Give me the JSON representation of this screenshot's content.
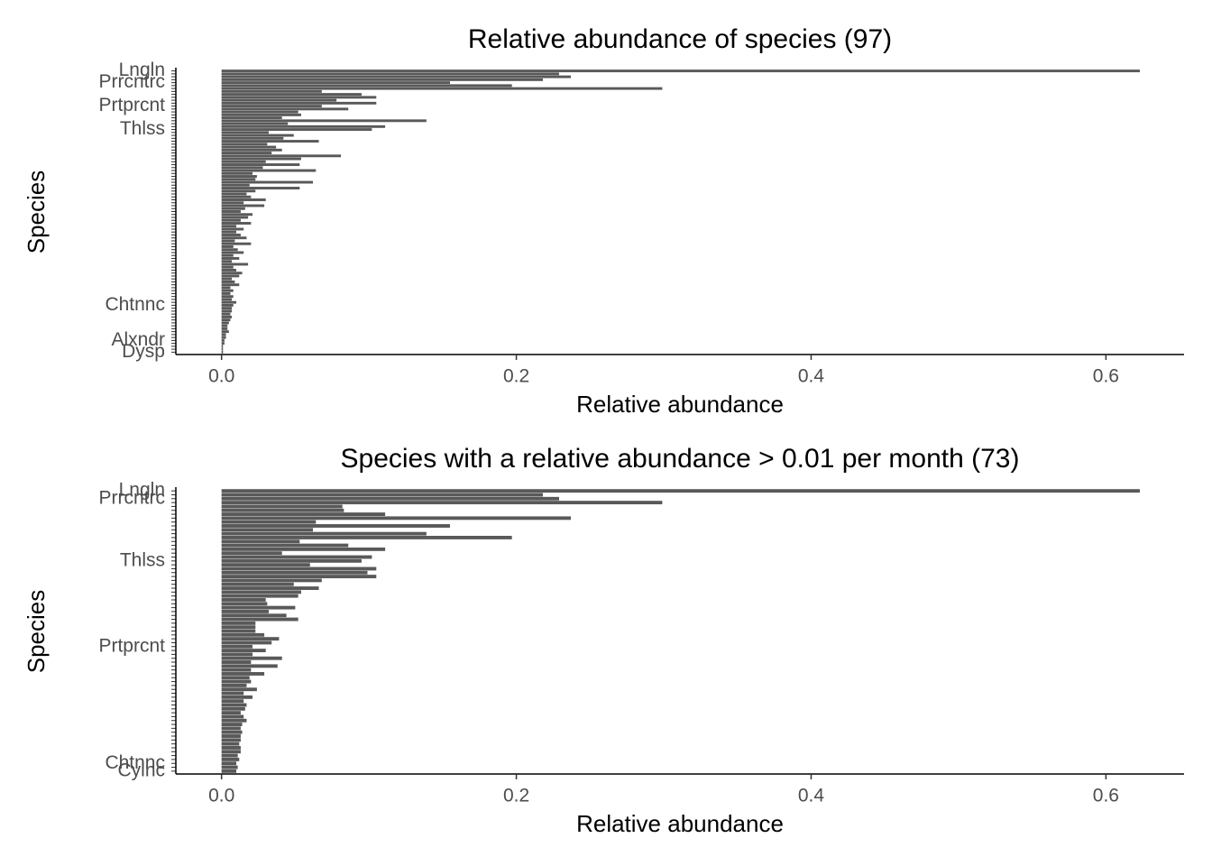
{
  "chart_data": [
    {
      "type": "bar",
      "orientation": "horizontal",
      "title": "Relative abundance of species (97)",
      "xlabel": "Relative abundance",
      "ylabel": "Species",
      "color": "#595959",
      "xlim": [
        -0.031,
        0.653
      ],
      "xticks": [
        {
          "value": 0,
          "label": "0.0"
        },
        0.2,
        0.4,
        0.6
      ],
      "categories": [
        "Lngln",
        null,
        null,
        null,
        "Prrcntrc",
        null,
        null,
        null,
        null,
        null,
        null,
        null,
        "Prtprcnt",
        null,
        null,
        null,
        null,
        null,
        null,
        null,
        "Thlss",
        null,
        null,
        null,
        null,
        null,
        null,
        null,
        null,
        null,
        null,
        null,
        null,
        null,
        null,
        null,
        null,
        null,
        null,
        null,
        null,
        null,
        null,
        null,
        null,
        null,
        null,
        null,
        null,
        null,
        null,
        null,
        null,
        null,
        null,
        null,
        null,
        null,
        null,
        null,
        null,
        null,
        null,
        null,
        null,
        null,
        null,
        null,
        null,
        null,
        null,
        null,
        null,
        null,
        null,
        null,
        null,
        null,
        null,
        null,
        "Chtnnc",
        null,
        null,
        null,
        null,
        null,
        null,
        null,
        null,
        null,
        null,
        null,
        "Alxndr",
        null,
        null,
        null,
        "Dysp"
      ],
      "values": [
        0.623,
        0.229,
        0.237,
        0.218,
        0.155,
        0.197,
        0.299,
        0.068,
        0.095,
        0.105,
        0.078,
        0.105,
        0.068,
        0.086,
        0.052,
        0.054,
        0.041,
        0.139,
        0.045,
        0.111,
        0.102,
        0.032,
        0.049,
        0.042,
        0.066,
        0.031,
        0.037,
        0.041,
        0.034,
        0.081,
        0.054,
        0.03,
        0.053,
        0.028,
        0.064,
        0.021,
        0.024,
        0.023,
        0.062,
        0.019,
        0.053,
        0.023,
        0.017,
        0.02,
        0.03,
        0.015,
        0.029,
        0.016,
        0.013,
        0.021,
        0.018,
        0.013,
        0.02,
        0.01,
        0.015,
        0.01,
        0.013,
        0.017,
        0.009,
        0.02,
        0.008,
        0.011,
        0.015,
        0.008,
        0.012,
        0.007,
        0.018,
        0.008,
        0.01,
        0.014,
        0.012,
        0.007,
        0.009,
        0.012,
        0.006,
        0.008,
        0.006,
        0.008,
        0.007,
        0.01,
        0.008,
        0.007,
        0.007,
        0.006,
        0.007,
        0.006,
        0.005,
        0.004,
        0.004,
        0.005,
        0.003,
        0.003,
        0.002,
        0.002,
        0.001,
        0.001,
        0.001
      ]
    },
    {
      "type": "bar",
      "orientation": "horizontal",
      "title": "Species with a relative abundance > 0.01 per month (73)",
      "xlabel": "Relative abundance",
      "ylabel": "Species",
      "color": "#595959",
      "xlim": [
        -0.031,
        0.653
      ],
      "xticks": [
        {
          "value": 0,
          "label": "0.0"
        },
        0.2,
        0.4,
        0.6
      ],
      "categories": [
        "Lngln",
        null,
        "Prrcntrc",
        null,
        null,
        null,
        null,
        null,
        null,
        null,
        null,
        null,
        null,
        null,
        null,
        null,
        null,
        null,
        "Thlss",
        null,
        null,
        null,
        null,
        null,
        null,
        null,
        null,
        null,
        null,
        null,
        null,
        null,
        null,
        null,
        null,
        null,
        null,
        null,
        null,
        null,
        "Prtprcnt",
        null,
        null,
        null,
        null,
        null,
        null,
        null,
        null,
        null,
        null,
        null,
        null,
        null,
        null,
        null,
        null,
        null,
        null,
        null,
        null,
        null,
        null,
        null,
        null,
        null,
        null,
        null,
        null,
        null,
        "Chtnnc",
        null,
        "Cylnc"
      ],
      "values": [
        0.623,
        0.218,
        0.229,
        0.299,
        0.082,
        0.083,
        0.111,
        0.237,
        0.064,
        0.155,
        0.062,
        0.139,
        0.197,
        0.053,
        0.086,
        0.111,
        0.041,
        0.102,
        0.095,
        0.06,
        0.105,
        0.099,
        0.105,
        0.068,
        0.049,
        0.066,
        0.054,
        0.052,
        0.03,
        0.031,
        0.05,
        0.032,
        0.044,
        0.052,
        0.023,
        0.023,
        0.023,
        0.029,
        0.039,
        0.034,
        0.021,
        0.03,
        0.021,
        0.041,
        0.02,
        0.038,
        0.02,
        0.029,
        0.019,
        0.02,
        0.017,
        0.024,
        0.015,
        0.021,
        0.015,
        0.017,
        0.016,
        0.013,
        0.015,
        0.017,
        0.014,
        0.013,
        0.014,
        0.013,
        0.013,
        0.012,
        0.013,
        0.013,
        0.011,
        0.012,
        0.01,
        0.011,
        0.01
      ]
    }
  ]
}
